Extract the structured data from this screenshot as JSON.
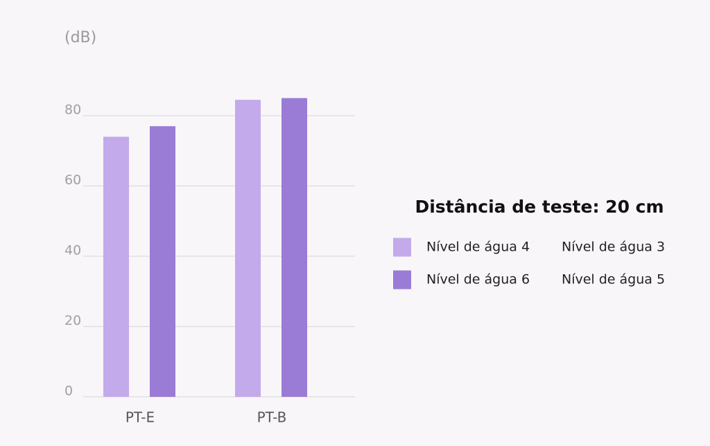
{
  "chart_data": {
    "type": "bar",
    "y_label": "(dB)",
    "legend_title": "Distância de teste: 20 cm",
    "categories": [
      "PT-E",
      "PT-B"
    ],
    "series": [
      {
        "name": "Nível de água 4",
        "alt_name": "Nível de água 3",
        "color": "#c3aaeb",
        "values": [
          74,
          84.5
        ]
      },
      {
        "name": "Nível de água 6",
        "alt_name": "Nível de água 5",
        "color": "#9a7bd6",
        "values": [
          77,
          85
        ]
      }
    ],
    "ylim": [
      0,
      100
    ],
    "yticks": [
      0,
      20,
      40,
      60,
      80
    ],
    "grid": true
  }
}
